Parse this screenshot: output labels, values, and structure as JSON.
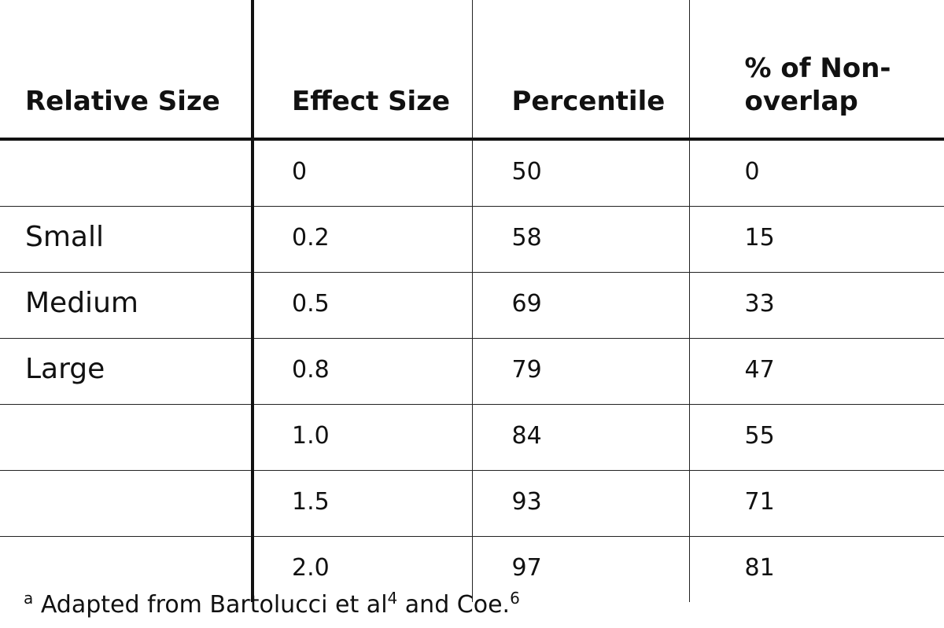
{
  "table": {
    "headers": {
      "relative_size": "Relative Size",
      "effect_size": "Effect Size",
      "percentile": "Percentile",
      "non_overlap": "% of Non-overlap"
    },
    "rows": [
      {
        "relative_size": "",
        "effect_size": "0",
        "percentile": "50",
        "non_overlap": "0"
      },
      {
        "relative_size": "Small",
        "effect_size": "0.2",
        "percentile": "58",
        "non_overlap": "15"
      },
      {
        "relative_size": "Medium",
        "effect_size": "0.5",
        "percentile": "69",
        "non_overlap": "33"
      },
      {
        "relative_size": "Large",
        "effect_size": "0.8",
        "percentile": "79",
        "non_overlap": "47"
      },
      {
        "relative_size": "",
        "effect_size": "1.0",
        "percentile": "84",
        "non_overlap": "55"
      },
      {
        "relative_size": "",
        "effect_size": "1.5",
        "percentile": "93",
        "non_overlap": "71"
      },
      {
        "relative_size": "",
        "effect_size": "2.0",
        "percentile": "97",
        "non_overlap": "81"
      }
    ]
  },
  "footnote": {
    "marker": "a",
    "text_before": "Adapted from Bartolucci et al",
    "ref1": "4",
    "text_middle": " and Coe.",
    "ref2": "6"
  }
}
